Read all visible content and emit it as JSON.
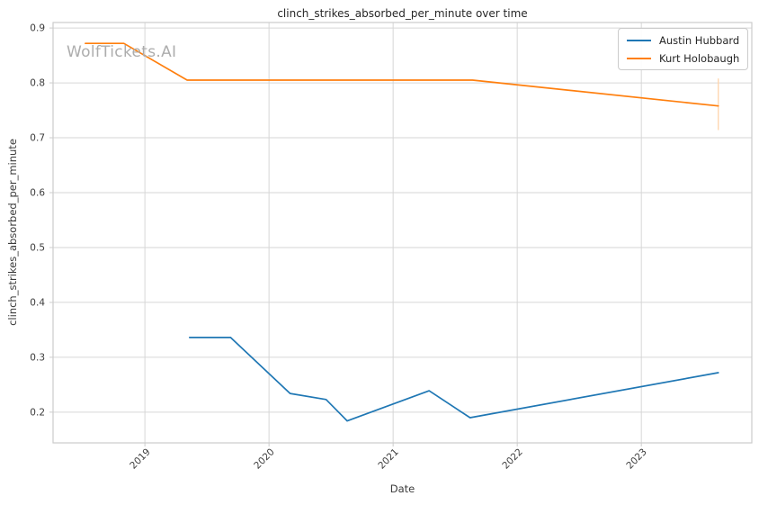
{
  "watermark": {
    "text": "WolfTickets.AI",
    "color": "#adadad"
  },
  "chart_data": {
    "type": "line",
    "title": "clinch_strikes_absorbed_per_minute over time",
    "xlabel": "Date",
    "ylabel": "clinch_strikes_absorbed_per_minute",
    "grid": true,
    "legend_position": "upper right",
    "xlim": [
      2018.26,
      2023.89
    ],
    "ylim": [
      0.144,
      0.91
    ],
    "xticks": [
      2019,
      2020,
      2021,
      2022,
      2023
    ],
    "xtick_labels": [
      "2019",
      "2020",
      "2021",
      "2022",
      "2023"
    ],
    "yticks": [
      0.2,
      0.3,
      0.4,
      0.5,
      0.6,
      0.7,
      0.8,
      0.9
    ],
    "ytick_labels": [
      "0.2",
      "0.3",
      "0.4",
      "0.5",
      "0.6",
      "0.7",
      "0.8",
      "0.9"
    ],
    "series": [
      {
        "name": "Austin Hubbard",
        "color": "#1f77b4",
        "x": [
          2019.36,
          2019.69,
          2020.17,
          2020.46,
          2020.63,
          2021.29,
          2021.62,
          2023.62
        ],
        "y": [
          0.336,
          0.336,
          0.234,
          0.223,
          0.184,
          0.239,
          0.19,
          0.272
        ]
      },
      {
        "name": "Kurt Holobaugh",
        "color": "#ff7f0e",
        "x": [
          2018.52,
          2018.83,
          2019.34,
          2021.64,
          2023.62
        ],
        "y": [
          0.872,
          0.872,
          0.805,
          0.805,
          0.758
        ],
        "error_bar": {
          "x": 2023.62,
          "low": 0.714,
          "high": 0.808,
          "color": "#ffd4ab"
        }
      }
    ],
    "style": {
      "grid_color": "#d6d6d6",
      "spine_color": "#cccccc",
      "tick_color": "#cccccc",
      "tick_label_color": "#3b3b3b",
      "line_width": 1.7
    }
  }
}
